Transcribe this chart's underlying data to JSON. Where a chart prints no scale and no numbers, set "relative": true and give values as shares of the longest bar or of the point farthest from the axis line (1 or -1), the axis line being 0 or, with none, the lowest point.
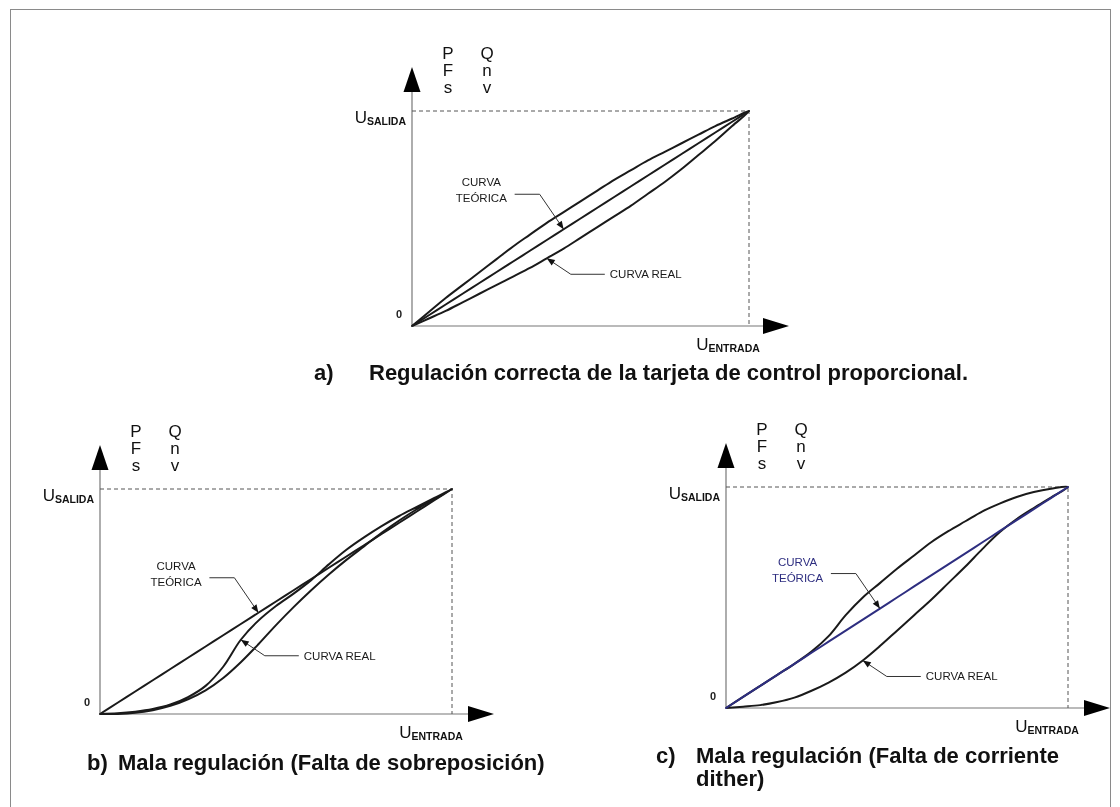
{
  "chart_data": [
    {
      "type": "line",
      "title": "a) Regulación correcta de la tarjeta de control proporcional.",
      "xlabel": "U$_{ENTRADA}$",
      "ylabel": "P Q\nF n\ns v",
      "relative": true,
      "categories": [
        null,
        null,
        null,
        null,
        null,
        null,
        null,
        null,
        null,
        null,
        null,
        null,
        null,
        null,
        null,
        null,
        null,
        null,
        null,
        null,
        null
      ],
      "series": [
        {
          "name": "CURVA\nTEÓRICA",
          "color": "#1a1a1a",
          "values": [
            0,
            0.05,
            0.1,
            0.15,
            0.2,
            0.25,
            0.3,
            0.35,
            0.4,
            0.45,
            0.5,
            0.55,
            0.6,
            0.65,
            0.7,
            0.75,
            0.8,
            0.85,
            0.9,
            0.95,
            1
          ]
        }
      ],
      "ref_lines": [
        {
          "axis": "y",
          "value": 1,
          "label": "U$_{SALIDA}$",
          "color": "#555555",
          "line_style": "dashed"
        }
      ],
      "annotations": [
        "0",
        "CURVA REAL"
      ]
    },
    {
      "type": "line",
      "title": "b) Mala regulación (Falta de sobreposición)",
      "xlabel": "U$_{ENTRADA}$",
      "ylabel": "P Q\nF n\ns v",
      "relative": true,
      "categories": [
        null,
        null,
        null,
        null,
        null,
        null,
        null,
        null,
        null,
        null,
        null,
        null,
        null,
        null,
        null,
        null,
        null,
        null,
        null,
        null,
        null
      ],
      "series": [
        {
          "name": "CURVA\nTEÓRICA",
          "color": "#1a1a1a",
          "values": [
            0,
            0.05,
            0.1,
            0.15,
            0.2,
            0.25,
            0.3,
            0.35,
            0.4,
            0.45,
            0.5,
            0.55,
            0.6,
            0.65,
            0.7,
            0.75,
            0.8,
            0.85,
            0.9,
            0.95,
            1
          ]
        }
      ],
      "ref_lines": [
        {
          "axis": "y",
          "value": 1,
          "label": "U$_{SALIDA}$",
          "color": "#555555",
          "line_style": "dashed"
        }
      ],
      "annotations": [
        "0",
        "CURVA REAL"
      ]
    },
    {
      "type": "line",
      "title": "c) Mala regulación (Falta de corriente dither)",
      "xlabel": "U$_{ENTRADA}$",
      "ylabel": "P Q\nF n\ns v",
      "relative": true,
      "categories": [
        null,
        null,
        null,
        null,
        null,
        null,
        null,
        null,
        null,
        null,
        null,
        null,
        null,
        null,
        null,
        null,
        null,
        null,
        null,
        null,
        null
      ],
      "series": [
        {
          "name": "CURVA\nTEÓRICA",
          "color": "#2e2e80",
          "values": [
            0,
            0.05,
            0.1,
            0.15,
            0.2,
            0.25,
            0.3,
            0.35,
            0.4,
            0.45,
            0.5,
            0.55,
            0.6,
            0.65,
            0.7,
            0.75,
            0.8,
            0.85,
            0.9,
            0.95,
            1
          ]
        }
      ],
      "ref_lines": [
        {
          "axis": "y",
          "value": 1,
          "label": "U$_{SALIDA}$",
          "color": "#555555",
          "line_style": "dashed"
        }
      ],
      "annotations": [
        "0",
        "CURVA REAL"
      ]
    }
  ]
}
